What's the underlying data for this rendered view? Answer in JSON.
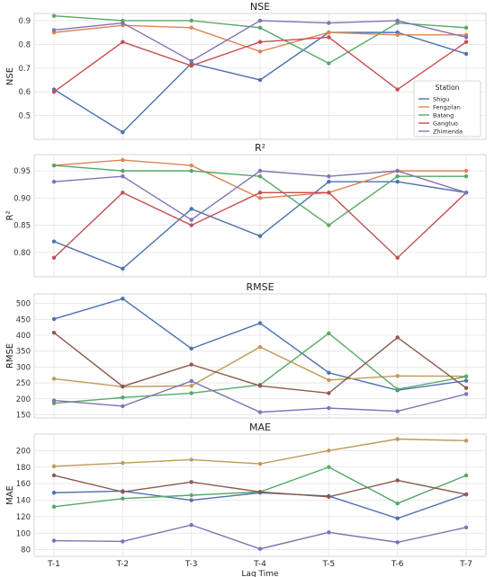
{
  "chart_data": [
    {
      "type": "line",
      "title": "NSE",
      "ylabel": "NSE",
      "ylim": [
        0.4,
        0.93
      ],
      "yticks": [
        "0.5",
        "0.6",
        "0.7",
        "0.8",
        "0.9"
      ],
      "ytick_values": [
        0.5,
        0.6,
        0.7,
        0.8,
        0.9
      ],
      "categories": [
        "T-1",
        "T-2",
        "T-3",
        "T-4",
        "T-5",
        "T-6",
        "T-7"
      ],
      "grid": true,
      "legend": {
        "title": "Station",
        "placement": "center-right",
        "entries": [
          "Shigu",
          "Fengzilan",
          "Batang",
          "Gangtuo",
          "Zhimenda"
        ]
      },
      "series": [
        {
          "name": "Shigu",
          "color": "#4c72b0",
          "values": [
            0.61,
            0.43,
            0.72,
            0.65,
            0.85,
            0.85,
            0.76
          ]
        },
        {
          "name": "Fengzilan",
          "color": "#dd8452",
          "values": [
            0.85,
            0.88,
            0.87,
            0.77,
            0.85,
            0.84,
            0.84
          ]
        },
        {
          "name": "Batang",
          "color": "#55a868",
          "values": [
            0.92,
            0.9,
            0.9,
            0.87,
            0.72,
            0.89,
            0.87
          ]
        },
        {
          "name": "Gangtuo",
          "color": "#c44e52",
          "values": [
            0.6,
            0.81,
            0.71,
            0.81,
            0.83,
            0.61,
            0.81
          ]
        },
        {
          "name": "Zhimenda",
          "color": "#8172b3",
          "values": [
            0.86,
            0.89,
            0.73,
            0.9,
            0.89,
            0.9,
            0.83
          ]
        }
      ]
    },
    {
      "type": "line",
      "title": "R²",
      "ylabel": "R²",
      "ylim": [
        0.755,
        0.98
      ],
      "yticks": [
        "0.80",
        "0.85",
        "0.90",
        "0.95"
      ],
      "ytick_values": [
        0.8,
        0.85,
        0.9,
        0.95
      ],
      "categories": [
        "T-1",
        "T-2",
        "T-3",
        "T-4",
        "T-5",
        "T-6",
        "T-7"
      ],
      "grid": true,
      "series": [
        {
          "color": "#4c72b0",
          "values": [
            0.82,
            0.77,
            0.88,
            0.83,
            0.93,
            0.93,
            0.91
          ]
        },
        {
          "color": "#dd8452",
          "values": [
            0.96,
            0.97,
            0.96,
            0.9,
            0.91,
            0.95,
            0.95
          ]
        },
        {
          "color": "#55a868",
          "values": [
            0.96,
            0.95,
            0.95,
            0.94,
            0.85,
            0.94,
            0.94
          ]
        },
        {
          "color": "#c44e52",
          "values": [
            0.79,
            0.91,
            0.85,
            0.91,
            0.91,
            0.79,
            0.91
          ]
        },
        {
          "color": "#8172b3",
          "values": [
            0.93,
            0.94,
            0.86,
            0.95,
            0.94,
            0.95,
            0.91
          ]
        }
      ]
    },
    {
      "type": "line",
      "title": "RMSE",
      "ylabel": "RMSE",
      "ylim": [
        140,
        530
      ],
      "yticks": [
        "150",
        "200",
        "250",
        "300",
        "350",
        "400",
        "450",
        "500"
      ],
      "ytick_values": [
        150,
        200,
        250,
        300,
        350,
        400,
        450,
        500
      ],
      "categories": [
        "T-1",
        "T-2",
        "T-3",
        "T-4",
        "T-5",
        "T-6",
        "T-7"
      ],
      "grid": true,
      "series": [
        {
          "color": "#4c72b0",
          "values": [
            451,
            515,
            358,
            438,
            282,
            227,
            257
          ]
        },
        {
          "color": "#c09a58",
          "values": [
            263,
            238,
            241,
            363,
            259,
            272,
            271
          ]
        },
        {
          "color": "#55a868",
          "values": [
            186,
            204,
            218,
            244,
            406,
            230,
            270
          ]
        },
        {
          "color": "#8c5a4f",
          "values": [
            408,
            239,
            308,
            241,
            218,
            393,
            234
          ]
        },
        {
          "color": "#8172b3",
          "values": [
            195,
            177,
            256,
            158,
            171,
            161,
            215
          ]
        }
      ]
    },
    {
      "type": "line",
      "title": "MAE",
      "ylabel": "MAE",
      "xlabel": "Lag Time",
      "ylim": [
        72,
        220
      ],
      "yticks": [
        "80",
        "100",
        "120",
        "140",
        "160",
        "180",
        "200"
      ],
      "ytick_values": [
        80,
        100,
        120,
        140,
        160,
        180,
        200
      ],
      "categories": [
        "T-1",
        "T-2",
        "T-3",
        "T-4",
        "T-5",
        "T-6",
        "T-7"
      ],
      "grid": true,
      "series": [
        {
          "color": "#4c72b0",
          "values": [
            149,
            151,
            140,
            149,
            145,
            118,
            147
          ]
        },
        {
          "color": "#c09a58",
          "values": [
            181,
            185,
            189,
            184,
            200,
            214,
            212
          ]
        },
        {
          "color": "#55a868",
          "values": [
            132,
            142,
            146,
            150,
            180,
            136,
            170
          ]
        },
        {
          "color": "#8c5a4f",
          "values": [
            170,
            150,
            162,
            150,
            144,
            164,
            147
          ]
        },
        {
          "color": "#8172b3",
          "values": [
            91,
            90,
            110,
            81,
            101,
            89,
            107
          ]
        }
      ]
    }
  ]
}
